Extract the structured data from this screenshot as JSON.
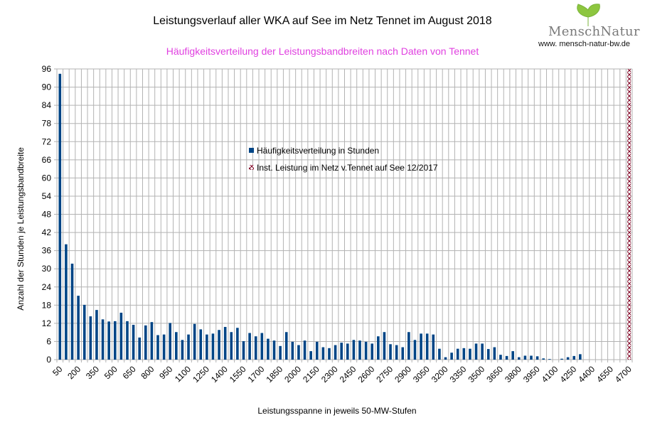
{
  "header": {
    "title": "Leistungsverlauf aller WKA auf See im Netz Tennet im August 2018",
    "subtitle": "Häufigkeitsverteilung der Leistungsbandbreiten nach Daten von Tennet"
  },
  "logo": {
    "name": "MenschNatur",
    "url": "www. mensch-natur-bw.de"
  },
  "colors": {
    "bar": "#004586",
    "installed": "#7e0021",
    "grid": "#b3b3b3",
    "subtitle": "#e040e0"
  },
  "chart_data": {
    "type": "bar",
    "title": "Leistungsverlauf aller WKA auf See im Netz Tennet im August 2018",
    "subtitle": "Häufigkeitsverteilung der Leistungsbandbreiten nach Daten von Tennet",
    "xlabel": "Leistungsspanne in jeweils 50-MW-Stufen",
    "ylabel": "Anzahl der Stunden je Leistungsbandbreite",
    "ylim": [
      0,
      96
    ],
    "yticks": [
      0,
      6,
      12,
      18,
      24,
      30,
      36,
      42,
      48,
      54,
      60,
      66,
      72,
      78,
      84,
      90,
      96
    ],
    "grid": true,
    "legend_position": "center",
    "x_label_every": 3,
    "categories": [
      50,
      100,
      150,
      200,
      250,
      300,
      350,
      400,
      450,
      500,
      550,
      600,
      650,
      700,
      750,
      800,
      850,
      900,
      950,
      1000,
      1050,
      1100,
      1150,
      1200,
      1250,
      1300,
      1350,
      1400,
      1450,
      1500,
      1550,
      1600,
      1650,
      1700,
      1750,
      1800,
      1850,
      1900,
      1950,
      2000,
      2050,
      2100,
      2150,
      2200,
      2250,
      2300,
      2350,
      2400,
      2450,
      2500,
      2550,
      2600,
      2650,
      2700,
      2750,
      2800,
      2850,
      2900,
      2950,
      3000,
      3050,
      3100,
      3150,
      3200,
      3250,
      3300,
      3350,
      3400,
      3450,
      3500,
      3550,
      3600,
      3650,
      3700,
      3750,
      3800,
      3850,
      3900,
      3950,
      4000,
      4050,
      4100,
      4150,
      4200,
      4250,
      4300,
      4350,
      4400,
      4450,
      4500,
      4550,
      4600,
      4650,
      4700
    ],
    "series": [
      {
        "name": "Häufigkeitsverteilung in Stunden",
        "style": "solid",
        "values": [
          94.4,
          38.1,
          31.7,
          21.1,
          18.1,
          14.3,
          16.4,
          13.3,
          12.6,
          12.7,
          15.5,
          12.7,
          11.5,
          7.3,
          11.3,
          12.4,
          8.1,
          8.3,
          12.1,
          9.1,
          6.5,
          8.3,
          11.8,
          10.0,
          8.3,
          8.6,
          9.8,
          10.8,
          9.1,
          10.5,
          6.1,
          8.8,
          7.7,
          8.8,
          6.9,
          6.3,
          4.5,
          9.1,
          5.9,
          4.8,
          6.3,
          2.8,
          5.9,
          4.1,
          3.8,
          4.8,
          5.6,
          5.3,
          6.5,
          6.3,
          5.9,
          5.3,
          7.7,
          9.1,
          5.1,
          4.8,
          4.1,
          9.1,
          6.5,
          8.6,
          8.6,
          8.3,
          3.6,
          0.8,
          2.3,
          3.6,
          3.8,
          3.6,
          5.3,
          5.3,
          3.5,
          4.1,
          1.6,
          1.2,
          2.8,
          0.8,
          1.3,
          1.3,
          1.1,
          0.4,
          0.2,
          0,
          0.3,
          0.8,
          1.2,
          1.8,
          0,
          0,
          0,
          0,
          0,
          0,
          0,
          0
        ]
      },
      {
        "name": "Inst. Leistung im Netz v.Tennet auf See 12/2017",
        "style": "hatched",
        "values": [
          0,
          0,
          0,
          0,
          0,
          0,
          0,
          0,
          0,
          0,
          0,
          0,
          0,
          0,
          0,
          0,
          0,
          0,
          0,
          0,
          0,
          0,
          0,
          0,
          0,
          0,
          0,
          0,
          0,
          0,
          0,
          0,
          0,
          0,
          0,
          0,
          0,
          0,
          0,
          0,
          0,
          0,
          0,
          0,
          0,
          0,
          0,
          0,
          0,
          0,
          0,
          0,
          0,
          0,
          0,
          0,
          0,
          0,
          0,
          0,
          0,
          0,
          0,
          0,
          0,
          0,
          0,
          0,
          0,
          0,
          0,
          0,
          0,
          0,
          0,
          0,
          0,
          0,
          0,
          0,
          0,
          0,
          0,
          0,
          0,
          0,
          0,
          0,
          0,
          0,
          0,
          0,
          0,
          96
        ]
      }
    ]
  }
}
